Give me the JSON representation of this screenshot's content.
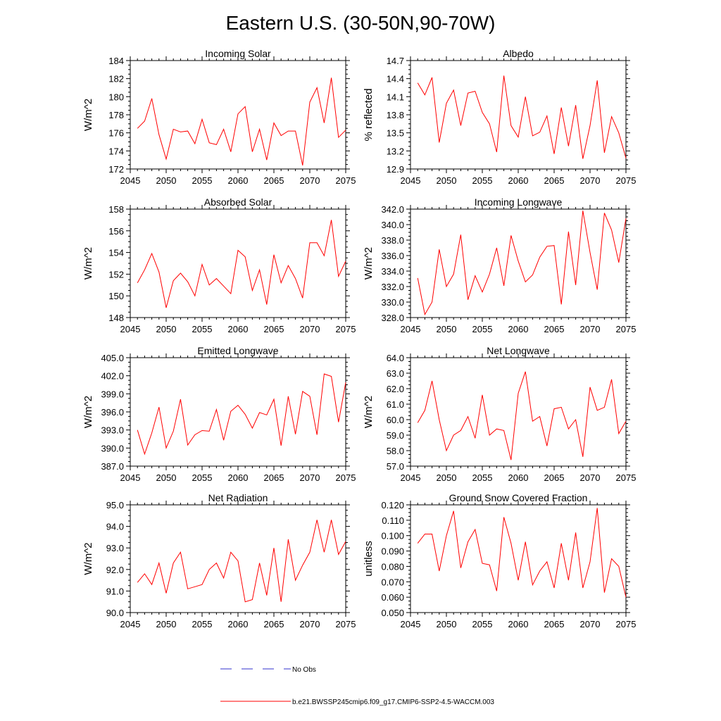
{
  "figure_title": "Eastern U.S. (30-50N,90-70W)",
  "legend": {
    "obs_label": "No Obs",
    "model_label": "b.e21.BWSSP245cmip6.f09_g17.CMIP6-SSP2-4.5-WACCM.003",
    "obs_color": "#3333cc",
    "model_color": "#ff0000"
  },
  "chart_data": [
    {
      "type": "line",
      "title": "Incoming Solar",
      "xlabel": "",
      "ylabel": "W/m^2",
      "xlim": [
        2045,
        2075
      ],
      "ylim": [
        172,
        184
      ],
      "xticks": [
        "2045",
        "2050",
        "2055",
        "2060",
        "2065",
        "2070",
        "2075"
      ],
      "yticks": [
        "172",
        "174",
        "176",
        "178",
        "180",
        "182",
        "184"
      ],
      "series": [
        {
          "name": "b.e21.BWSSP245cmip6.f09_g17.CMIP6-SSP2-4.5-WACCM.003",
          "x": [
            2046,
            2047,
            2048,
            2049,
            2050,
            2051,
            2052,
            2053,
            2054,
            2055,
            2056,
            2057,
            2058,
            2059,
            2060,
            2061,
            2062,
            2063,
            2064,
            2065,
            2066,
            2067,
            2068,
            2069,
            2070,
            2071,
            2072,
            2073,
            2074,
            2075
          ],
          "values": [
            176.5,
            177.3,
            179.8,
            175.8,
            173.1,
            176.4,
            176.1,
            176.2,
            174.8,
            177.5,
            174.9,
            174.7,
            176.4,
            173.9,
            178.1,
            178.9,
            173.9,
            176.4,
            173.0,
            177.1,
            175.7,
            176.2,
            176.2,
            172.4,
            179.4,
            181.0,
            177.1,
            182.1,
            175.5,
            176.3
          ]
        }
      ]
    },
    {
      "type": "line",
      "title": "Albedo",
      "xlabel": "",
      "ylabel": "% reflected",
      "xlim": [
        2045,
        2075
      ],
      "ylim": [
        12.9,
        14.7
      ],
      "xticks": [
        "2045",
        "2050",
        "2055",
        "2060",
        "2065",
        "2070",
        "2075"
      ],
      "yticks": [
        "12.9",
        "13.2",
        "13.5",
        "13.8",
        "14.1",
        "14.4",
        "14.7"
      ],
      "series": [
        {
          "name": "b.e21.BWSSP245cmip6.f09_g17.CMIP6-SSP2-4.5-WACCM.003",
          "x": [
            2046,
            2047,
            2048,
            2049,
            2050,
            2051,
            2052,
            2053,
            2054,
            2055,
            2056,
            2057,
            2058,
            2059,
            2060,
            2061,
            2062,
            2063,
            2064,
            2065,
            2066,
            2067,
            2068,
            2069,
            2070,
            2071,
            2072,
            2073,
            2074,
            2075
          ],
          "values": [
            14.33,
            14.13,
            14.42,
            13.34,
            13.99,
            14.21,
            13.62,
            14.16,
            14.19,
            13.84,
            13.65,
            13.18,
            14.45,
            13.62,
            13.43,
            14.1,
            13.45,
            13.51,
            13.78,
            13.15,
            13.92,
            13.28,
            13.96,
            13.07,
            13.62,
            14.37,
            13.17,
            13.77,
            13.5,
            13.08
          ]
        }
      ]
    },
    {
      "type": "line",
      "title": "Absorbed Solar",
      "xlabel": "",
      "ylabel": "W/m^2",
      "xlim": [
        2045,
        2075
      ],
      "ylim": [
        148,
        158
      ],
      "xticks": [
        "2045",
        "2050",
        "2055",
        "2060",
        "2065",
        "2070",
        "2075"
      ],
      "yticks": [
        "148",
        "150",
        "152",
        "154",
        "156",
        "158"
      ],
      "series": [
        {
          "name": "b.e21.BWSSP245cmip6.f09_g17.CMIP6-SSP2-4.5-WACCM.003",
          "x": [
            2046,
            2047,
            2048,
            2049,
            2050,
            2051,
            2052,
            2053,
            2054,
            2055,
            2056,
            2057,
            2058,
            2059,
            2060,
            2061,
            2062,
            2063,
            2064,
            2065,
            2066,
            2067,
            2068,
            2069,
            2070,
            2071,
            2072,
            2073,
            2074,
            2075
          ],
          "values": [
            151.2,
            152.4,
            153.9,
            152.2,
            148.9,
            151.4,
            152.1,
            151.3,
            150.0,
            152.9,
            151.0,
            151.6,
            150.9,
            150.2,
            154.2,
            153.6,
            150.5,
            152.4,
            149.2,
            153.8,
            151.2,
            152.8,
            151.6,
            149.8,
            154.9,
            154.9,
            153.7,
            157.0,
            151.8,
            153.2
          ]
        }
      ]
    },
    {
      "type": "line",
      "title": "Incoming Longwave",
      "xlabel": "",
      "ylabel": "W/m^2",
      "xlim": [
        2045,
        2075
      ],
      "ylim": [
        328.0,
        342.0
      ],
      "xticks": [
        "2045",
        "2050",
        "2055",
        "2060",
        "2065",
        "2070",
        "2075"
      ],
      "yticks": [
        "328.0",
        "330.0",
        "332.0",
        "334.0",
        "336.0",
        "338.0",
        "340.0",
        "342.0"
      ],
      "series": [
        {
          "name": "b.e21.BWSSP245cmip6.f09_g17.CMIP6-SSP2-4.5-WACCM.003",
          "x": [
            2046,
            2047,
            2048,
            2049,
            2050,
            2051,
            2052,
            2053,
            2054,
            2055,
            2056,
            2057,
            2058,
            2059,
            2060,
            2061,
            2062,
            2063,
            2064,
            2065,
            2066,
            2067,
            2068,
            2069,
            2070,
            2071,
            2072,
            2073,
            2074,
            2075
          ],
          "values": [
            333.1,
            328.4,
            330.0,
            336.8,
            332.0,
            333.6,
            338.7,
            330.3,
            333.4,
            331.3,
            333.6,
            337.0,
            332.1,
            338.6,
            335.3,
            332.6,
            333.5,
            335.8,
            337.2,
            337.3,
            329.7,
            339.1,
            332.2,
            341.8,
            336.4,
            331.6,
            341.5,
            339.3,
            335.1,
            340.8
          ]
        }
      ]
    },
    {
      "type": "line",
      "title": "Emitted Longwave",
      "xlabel": "",
      "ylabel": "W/m^2",
      "xlim": [
        2045,
        2075
      ],
      "ylim": [
        387.0,
        405.0
      ],
      "xticks": [
        "2045",
        "2050",
        "2055",
        "2060",
        "2065",
        "2070",
        "2075"
      ],
      "yticks": [
        "387.0",
        "390.0",
        "393.0",
        "396.0",
        "399.0",
        "402.0",
        "405.0"
      ],
      "series": [
        {
          "name": "b.e21.BWSSP245cmip6.f09_g17.CMIP6-SSP2-4.5-WACCM.003",
          "x": [
            2046,
            2047,
            2048,
            2049,
            2050,
            2051,
            2052,
            2053,
            2054,
            2055,
            2056,
            2057,
            2058,
            2059,
            2060,
            2061,
            2062,
            2063,
            2064,
            2065,
            2066,
            2067,
            2068,
            2069,
            2070,
            2071,
            2072,
            2073,
            2074,
            2075
          ],
          "values": [
            393.0,
            389.0,
            392.5,
            396.8,
            390.0,
            392.8,
            398.1,
            390.5,
            392.2,
            392.9,
            392.8,
            396.4,
            391.3,
            396.1,
            397.1,
            395.6,
            393.3,
            395.9,
            395.5,
            398.1,
            390.4,
            398.6,
            392.3,
            399.4,
            398.6,
            392.2,
            402.3,
            401.9,
            394.3,
            400.9
          ]
        }
      ]
    },
    {
      "type": "line",
      "title": "Net Longwave",
      "xlabel": "",
      "ylabel": "W/m^2",
      "xlim": [
        2045,
        2075
      ],
      "ylim": [
        57.0,
        64.0
      ],
      "xticks": [
        "2045",
        "2050",
        "2055",
        "2060",
        "2065",
        "2070",
        "2075"
      ],
      "yticks": [
        "57.0",
        "58.0",
        "59.0",
        "60.0",
        "61.0",
        "62.0",
        "63.0",
        "64.0"
      ],
      "series": [
        {
          "name": "b.e21.BWSSP245cmip6.f09_g17.CMIP6-SSP2-4.5-WACCM.003",
          "x": [
            2046,
            2047,
            2048,
            2049,
            2050,
            2051,
            2052,
            2053,
            2054,
            2055,
            2056,
            2057,
            2058,
            2059,
            2060,
            2061,
            2062,
            2063,
            2064,
            2065,
            2066,
            2067,
            2068,
            2069,
            2070,
            2071,
            2072,
            2073,
            2074,
            2075
          ],
          "values": [
            59.8,
            60.6,
            62.5,
            60.0,
            58.0,
            59.0,
            59.3,
            60.2,
            58.8,
            61.6,
            59.0,
            59.4,
            59.3,
            57.4,
            61.7,
            63.1,
            59.9,
            60.2,
            58.3,
            60.7,
            60.8,
            59.4,
            60.0,
            57.6,
            62.1,
            60.6,
            60.8,
            62.6,
            59.1,
            59.9
          ]
        }
      ]
    },
    {
      "type": "line",
      "title": "Net Radiation",
      "xlabel": "",
      "ylabel": "W/m^2",
      "xlim": [
        2045,
        2075
      ],
      "ylim": [
        90.0,
        95.0
      ],
      "xticks": [
        "2045",
        "2050",
        "2055",
        "2060",
        "2065",
        "2070",
        "2075"
      ],
      "yticks": [
        "90.0",
        "91.0",
        "92.0",
        "93.0",
        "94.0",
        "95.0"
      ],
      "series": [
        {
          "name": "b.e21.BWSSP245cmip6.f09_g17.CMIP6-SSP2-4.5-WACCM.003",
          "x": [
            2046,
            2047,
            2048,
            2049,
            2050,
            2051,
            2052,
            2053,
            2054,
            2055,
            2056,
            2057,
            2058,
            2059,
            2060,
            2061,
            2062,
            2063,
            2064,
            2065,
            2066,
            2067,
            2068,
            2069,
            2070,
            2071,
            2072,
            2073,
            2074,
            2075
          ],
          "values": [
            91.4,
            91.8,
            91.3,
            92.3,
            90.9,
            92.3,
            92.8,
            91.1,
            91.2,
            91.3,
            92.0,
            92.3,
            91.6,
            92.8,
            92.4,
            90.5,
            90.6,
            92.3,
            90.8,
            93.0,
            90.5,
            93.4,
            91.5,
            92.2,
            92.8,
            94.3,
            92.8,
            94.3,
            92.7,
            93.3
          ]
        }
      ]
    },
    {
      "type": "line",
      "title": "Ground Snow Covered Fraction",
      "xlabel": "",
      "ylabel": "unitless",
      "xlim": [
        2045,
        2075
      ],
      "ylim": [
        0.05,
        0.12
      ],
      "xticks": [
        "2045",
        "2050",
        "2055",
        "2060",
        "2065",
        "2070",
        "2075"
      ],
      "yticks": [
        "0.050",
        "0.060",
        "0.070",
        "0.080",
        "0.090",
        "0.100",
        "0.110",
        "0.120"
      ],
      "series": [
        {
          "name": "b.e21.BWSSP245cmip6.f09_g17.CMIP6-SSP2-4.5-WACCM.003",
          "x": [
            2046,
            2047,
            2048,
            2049,
            2050,
            2051,
            2052,
            2053,
            2054,
            2055,
            2056,
            2057,
            2058,
            2059,
            2060,
            2061,
            2062,
            2063,
            2064,
            2065,
            2066,
            2067,
            2068,
            2069,
            2070,
            2071,
            2072,
            2073,
            2074,
            2075
          ],
          "values": [
            0.095,
            0.101,
            0.101,
            0.077,
            0.1,
            0.116,
            0.079,
            0.096,
            0.104,
            0.082,
            0.081,
            0.064,
            0.112,
            0.095,
            0.071,
            0.096,
            0.068,
            0.077,
            0.083,
            0.066,
            0.095,
            0.071,
            0.102,
            0.066,
            0.083,
            0.118,
            0.063,
            0.085,
            0.08,
            0.06
          ]
        }
      ]
    }
  ]
}
